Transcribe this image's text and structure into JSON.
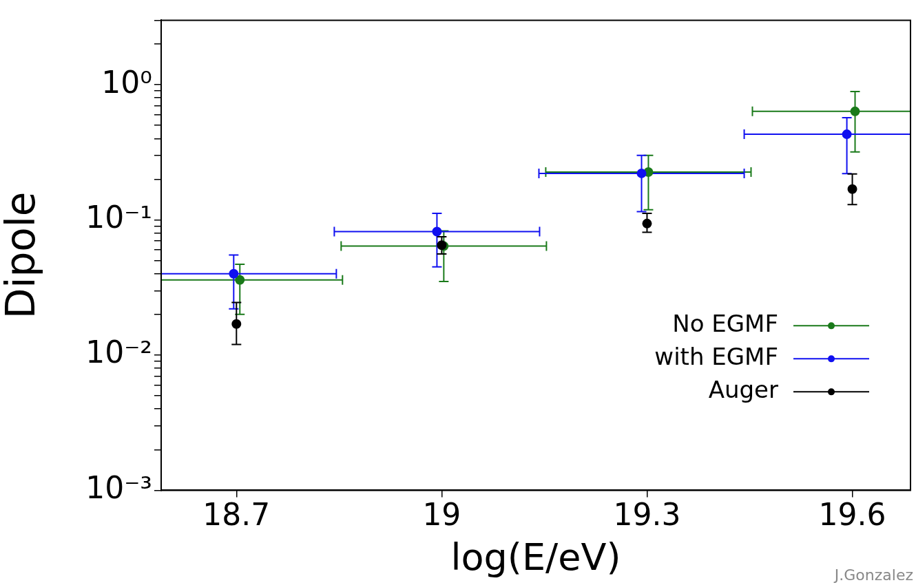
{
  "chart_data": {
    "type": "scatter",
    "xlabel": "log(E/eV)",
    "ylabel": "Dipole",
    "log": "y",
    "marker": "circle",
    "grid": false,
    "legend": "right",
    "xlim": [
      18.59,
      19.685
    ],
    "xticks": [
      18.7,
      19,
      19.3,
      19.6
    ],
    "ylim": [
      0.001,
      3
    ],
    "yticks": [
      {
        "value": 0.001,
        "label": "10⁻³"
      },
      {
        "value": 0.002,
        "label": null
      },
      {
        "value": 0.003,
        "label": null
      },
      {
        "value": 0.004,
        "label": null
      },
      {
        "value": 0.005,
        "label": null
      },
      {
        "value": 0.006,
        "label": null
      },
      {
        "value": 0.007,
        "label": null
      },
      {
        "value": 0.008,
        "label": null
      },
      {
        "value": 0.009,
        "label": null
      },
      {
        "value": 0.01,
        "label": "10⁻²"
      },
      {
        "value": 0.02,
        "label": null
      },
      {
        "value": 0.03,
        "label": null
      },
      {
        "value": 0.04,
        "label": null
      },
      {
        "value": 0.05,
        "label": null
      },
      {
        "value": 0.06,
        "label": null
      },
      {
        "value": 0.07,
        "label": null
      },
      {
        "value": 0.08,
        "label": null
      },
      {
        "value": 0.09,
        "label": null
      },
      {
        "value": 0.1,
        "label": "10⁻¹"
      },
      {
        "value": 0.2,
        "label": null
      },
      {
        "value": 0.3,
        "label": null
      },
      {
        "value": 0.4,
        "label": null
      },
      {
        "value": 0.5,
        "label": null
      },
      {
        "value": 0.6,
        "label": null
      },
      {
        "value": 0.7,
        "label": null
      },
      {
        "value": 0.8,
        "label": null
      },
      {
        "value": 0.9,
        "label": null
      },
      {
        "value": 1,
        "label": "10⁰"
      },
      {
        "value": 2,
        "label": null
      },
      {
        "value": 3,
        "label": null
      }
    ],
    "series": [
      {
        "name": "No EGMF",
        "color": "#1a7a1a",
        "x": [
          18.705,
          19.003,
          19.302,
          19.604
        ],
        "values": [
          0.036,
          0.064,
          0.226,
          0.635
        ],
        "errors": [
          [
            0.02,
            0.047
          ],
          [
            0.035,
            0.083
          ],
          [
            0.119,
            0.3
          ],
          [
            0.318,
            0.89
          ]
        ],
        "xerrors": [
          0.15,
          0.15,
          0.15,
          0.15
        ]
      },
      {
        "name": "with EGMF",
        "color": "#1010f0",
        "x": [
          18.696,
          18.993,
          19.292,
          19.592
        ],
        "values": [
          0.04,
          0.082,
          0.221,
          0.43
        ],
        "errors": [
          [
            0.022,
            0.055
          ],
          [
            0.045,
            0.112
          ],
          [
            0.115,
            0.3
          ],
          [
            0.22,
            0.57
          ]
        ],
        "xerrors": [
          0.15,
          0.15,
          0.15,
          0.15
        ]
      },
      {
        "name": "Auger",
        "color": "#000000",
        "x": [
          18.7,
          19,
          19.3,
          19.6
        ],
        "values": [
          0.017,
          0.065,
          0.094,
          0.169
        ],
        "errors": [
          [
            0.012,
            0.0245
          ],
          [
            0.056,
            0.075
          ],
          [
            0.081,
            0.112
          ],
          [
            0.13,
            0.219
          ]
        ]
      }
    ],
    "annotations": [
      "J.Gonzalez"
    ]
  }
}
